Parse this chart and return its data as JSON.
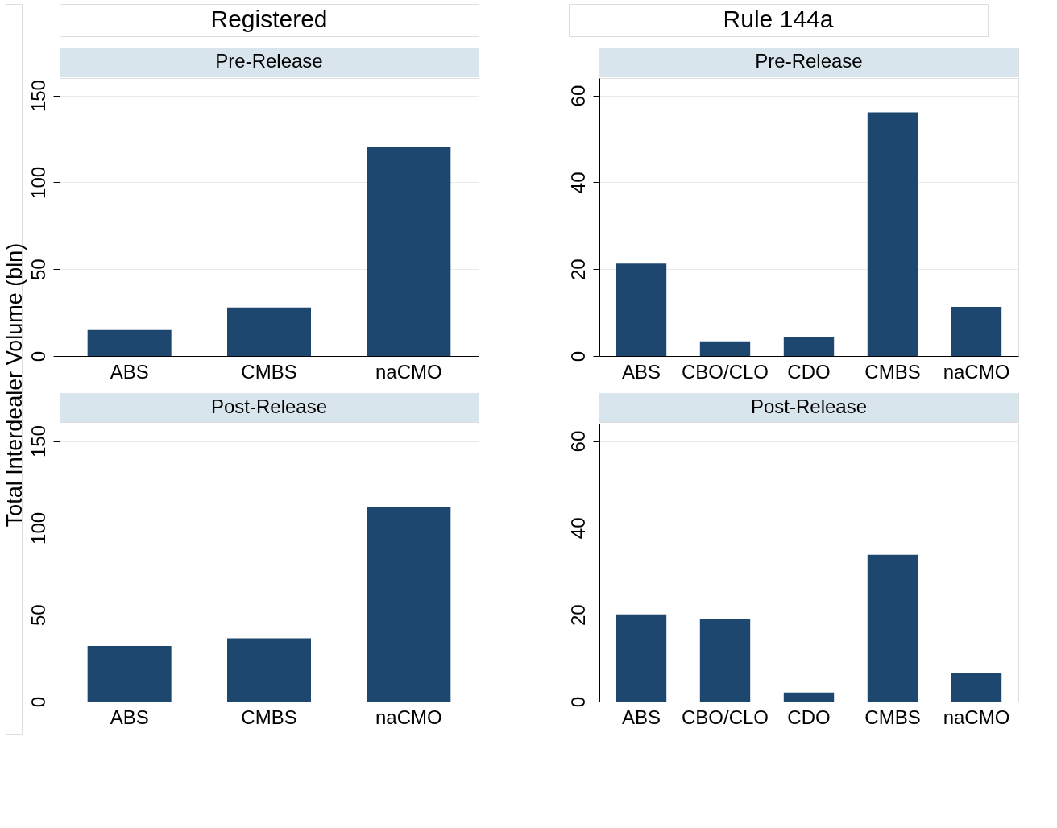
{
  "chart_data": [
    {
      "type": "bar",
      "title": "Pre-Release",
      "annotations": [
        "Registered"
      ],
      "ylabel": "Total Interdealer Volume (bln)",
      "categories": [
        "ABS",
        "CMBS",
        "naCMO"
      ],
      "values": [
        15,
        28,
        120.5
      ],
      "color": "#1d476f",
      "ylim": [
        0,
        160
      ],
      "yticks": [
        0,
        50,
        100,
        150
      ],
      "grid": "y"
    },
    {
      "type": "bar",
      "title": "Pre-Release",
      "annotations": [
        "Rule 144a"
      ],
      "categories": [
        "ABS",
        "CBO/CLO",
        "CDO",
        "CMBS",
        "naCMO"
      ],
      "values": [
        21.3,
        3.4,
        4.4,
        56.1,
        11.3
      ],
      "color": "#1d476f",
      "ylim": [
        0,
        64
      ],
      "yticks": [
        0,
        20,
        40,
        60
      ],
      "grid": "y"
    },
    {
      "type": "bar",
      "title": "Post-Release",
      "categories": [
        "ABS",
        "CMBS",
        "naCMO"
      ],
      "values": [
        32,
        36.4,
        112
      ],
      "color": "#1d476f",
      "ylim": [
        0,
        160
      ],
      "yticks": [
        0,
        50,
        100,
        150
      ],
      "grid": "y"
    },
    {
      "type": "bar",
      "title": "Post-Release",
      "categories": [
        "ABS",
        "CBO/CLO",
        "CDO",
        "CMBS",
        "naCMO"
      ],
      "values": [
        20.1,
        19.1,
        2.1,
        33.8,
        6.5
      ],
      "color": "#1d476f",
      "ylim": [
        0,
        64
      ],
      "yticks": [
        0,
        20,
        40,
        60
      ],
      "grid": "y"
    }
  ]
}
